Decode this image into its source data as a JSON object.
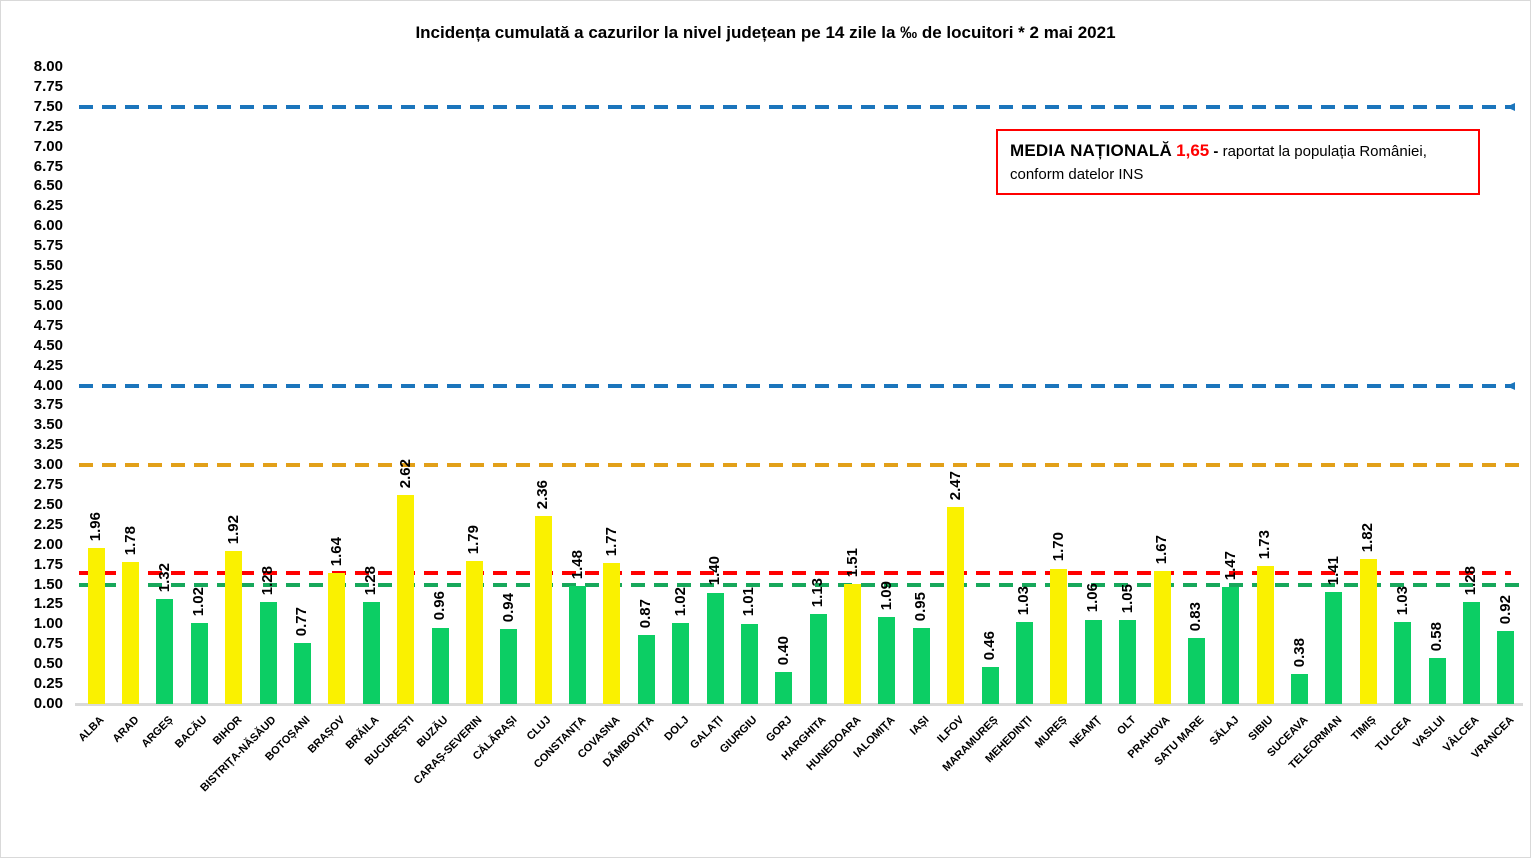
{
  "chart_data": {
    "type": "bar",
    "title": "Incidența cumulată a cazurilor la nivel județean pe 14 zile la ‰ de locuitori *  2 mai 2021",
    "categories": [
      "ALBA",
      "ARAD",
      "ARGEȘ",
      "BACĂU",
      "BIHOR",
      "BISTRIȚA-NĂSĂUD",
      "BOTOȘANI",
      "BRAȘOV",
      "BRĂILA",
      "BUCUREȘTI",
      "BUZĂU",
      "CARAȘ-SEVERIN",
      "CĂLĂRAȘI",
      "CLUJ",
      "CONSTANȚA",
      "COVASNA",
      "DÂMBOVIȚA",
      "DOLJ",
      "GALAȚI",
      "GIURGIU",
      "GORJ",
      "HARGHITA",
      "HUNEDOARA",
      "IALOMIȚA",
      "IAȘI",
      "ILFOV",
      "MARAMUREȘ",
      "MEHEDINȚI",
      "MUREȘ",
      "NEAMȚ",
      "OLT",
      "PRAHOVA",
      "SATU MARE",
      "SĂLAJ",
      "SIBIU",
      "SUCEAVA",
      "TELEORMAN",
      "TIMIȘ",
      "TULCEA",
      "VASLUI",
      "VÂLCEA",
      "VRANCEA"
    ],
    "values": [
      "1.96",
      "1.78",
      "1.32",
      "1.02",
      "1.92",
      "1.28",
      "0.77",
      "1.64",
      "1.28",
      "2.62",
      "0.96",
      "1.79",
      "0.94",
      "2.36",
      "1.48",
      "1.77",
      "0.87",
      "1.02",
      "1.40",
      "1.01",
      "0.40",
      "1.13",
      "1.51",
      "1.09",
      "0.95",
      "2.47",
      "0.46",
      "1.03",
      "1.70",
      "1.06",
      "1.05",
      "1.67",
      "0.83",
      "1.47",
      "1.73",
      "0.38",
      "1.41",
      "1.82",
      "1.03",
      "0.58",
      "1.28",
      "0.92"
    ],
    "xlabel": "",
    "ylabel": "",
    "ylim": [
      0,
      8
    ],
    "ytick_step": 0.25,
    "yticks": [
      "8.00",
      "7.75",
      "7.50",
      "7.25",
      "7.00",
      "6.75",
      "6.50",
      "6.25",
      "6.00",
      "5.75",
      "5.50",
      "5.25",
      "5.00",
      "4.75",
      "4.50",
      "4.25",
      "4.00",
      "3.75",
      "3.50",
      "3.25",
      "3.00",
      "2.75",
      "2.50",
      "2.25",
      "2.00",
      "1.75",
      "1.50",
      "1.25",
      "1.00",
      "0.75",
      "0.50",
      "0.25",
      "0.00"
    ],
    "grid": false,
    "bar_color_threshold": 1.5,
    "bar_color_above": "#faf100",
    "bar_color_below": "#0cce64",
    "reference_lines": [
      {
        "value": 7.5,
        "color": "#1b75bc",
        "style": "dashed",
        "arrow": true
      },
      {
        "value": 4.0,
        "color": "#1b75bc",
        "style": "dashed",
        "arrow": true
      },
      {
        "value": 3.0,
        "color": "#e2a019",
        "style": "dashed",
        "arrow": false
      },
      {
        "value": 1.65,
        "color": "#ff0000",
        "style": "dashed",
        "arrow": false
      },
      {
        "value": 1.5,
        "color": "#17a85b",
        "style": "dashed",
        "arrow": false
      }
    ]
  },
  "legend": {
    "label": "MEDIA NAȚIONALĂ",
    "value": "1,65",
    "separator": "-",
    "text": "raportat la populația României, conform datelor INS",
    "value_color": "#ff0000",
    "border_color": "#ff0000"
  }
}
